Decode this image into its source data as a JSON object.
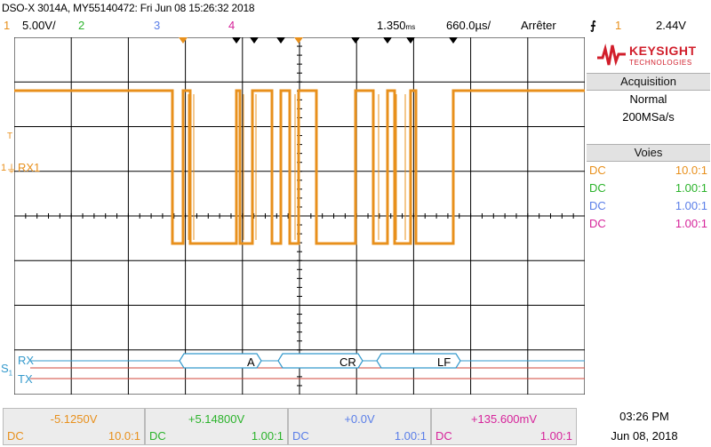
{
  "header": {
    "title": "DSO-X 3014A, MY55140472: Fri Jun 08 15:26:32 2018",
    "ch1_num": "1",
    "ch1_scale": "5.00V/",
    "ch2_num": "2",
    "ch3_num": "3",
    "ch4_num": "4",
    "time_delay": "1.350",
    "time_delay_unit": "ms",
    "time_scale": "660.0",
    "time_scale_unit": "µs/",
    "run_state": "Arrêter",
    "trigger_source": "1",
    "trigger_level": "2.44V"
  },
  "brand": {
    "line1": "KEYSIGHT",
    "line2": "TECHNOLOGIES"
  },
  "acquisition": {
    "title": "Acquisition",
    "mode": "Normal",
    "rate": "200MSa/s"
  },
  "channels_panel": {
    "title": "Voies",
    "rows": [
      {
        "coupling": "DC",
        "probe": "10.0:1",
        "color": "#e8901c"
      },
      {
        "coupling": "DC",
        "probe": "1.00:1",
        "color": "#2bb32b"
      },
      {
        "coupling": "DC",
        "probe": "1.00:1",
        "color": "#5a7ee8"
      },
      {
        "coupling": "DC",
        "probe": "1.00:1",
        "color": "#d6239a"
      }
    ]
  },
  "waveform": {
    "ch1_label": "RX1",
    "trigger_marker": "T",
    "ground_marker": "1",
    "serial_label": "S",
    "serial_sub": "1",
    "rx_label": "RX",
    "tx_label": "TX",
    "decoded": [
      "A",
      "CR",
      "LF"
    ]
  },
  "bottom": [
    {
      "offset": "-5.1250V",
      "coupling": "DC",
      "probe": "10.0:1",
      "color": "#e8901c"
    },
    {
      "offset": "+5.14800V",
      "coupling": "DC",
      "probe": "1.00:1",
      "color": "#2bb32b"
    },
    {
      "offset": "+0.0V",
      "coupling": "DC",
      "probe": "1.00:1",
      "color": "#5a7ee8"
    },
    {
      "offset": "+135.600mV",
      "coupling": "DC",
      "probe": "1.00:1",
      "color": "#d6239a"
    }
  ],
  "clock": {
    "time": "03:26 PM",
    "date": "Jun 08, 2018"
  },
  "colors": {
    "ch1": "#e8901c",
    "ch2": "#2bb32b",
    "ch3": "#5a7ee8",
    "ch4": "#d6239a",
    "serial": "#3399cc",
    "tx": "#c0392b"
  }
}
